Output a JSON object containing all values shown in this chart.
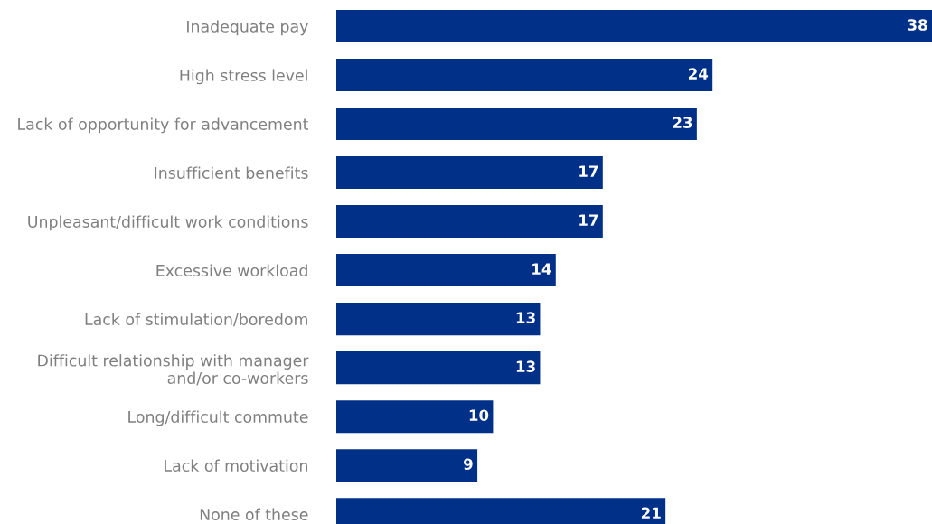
{
  "chart_data": {
    "type": "bar",
    "orientation": "horizontal",
    "data_labels": true,
    "categories": [
      "Inadequate pay",
      "High stress level",
      "Lack of opportunity for advancement",
      "Insufficient benefits",
      "Unpleasant/difficult work conditions",
      "Excessive workload",
      "Lack of stimulation/boredom",
      "Difficult relationship with manager\nand/or co-workers",
      "Long/difficult commute",
      "Lack of motivation",
      "None of these"
    ],
    "values": [
      38,
      24,
      23,
      17,
      17,
      14,
      13,
      13,
      10,
      9,
      21
    ],
    "color": "#003087"
  }
}
